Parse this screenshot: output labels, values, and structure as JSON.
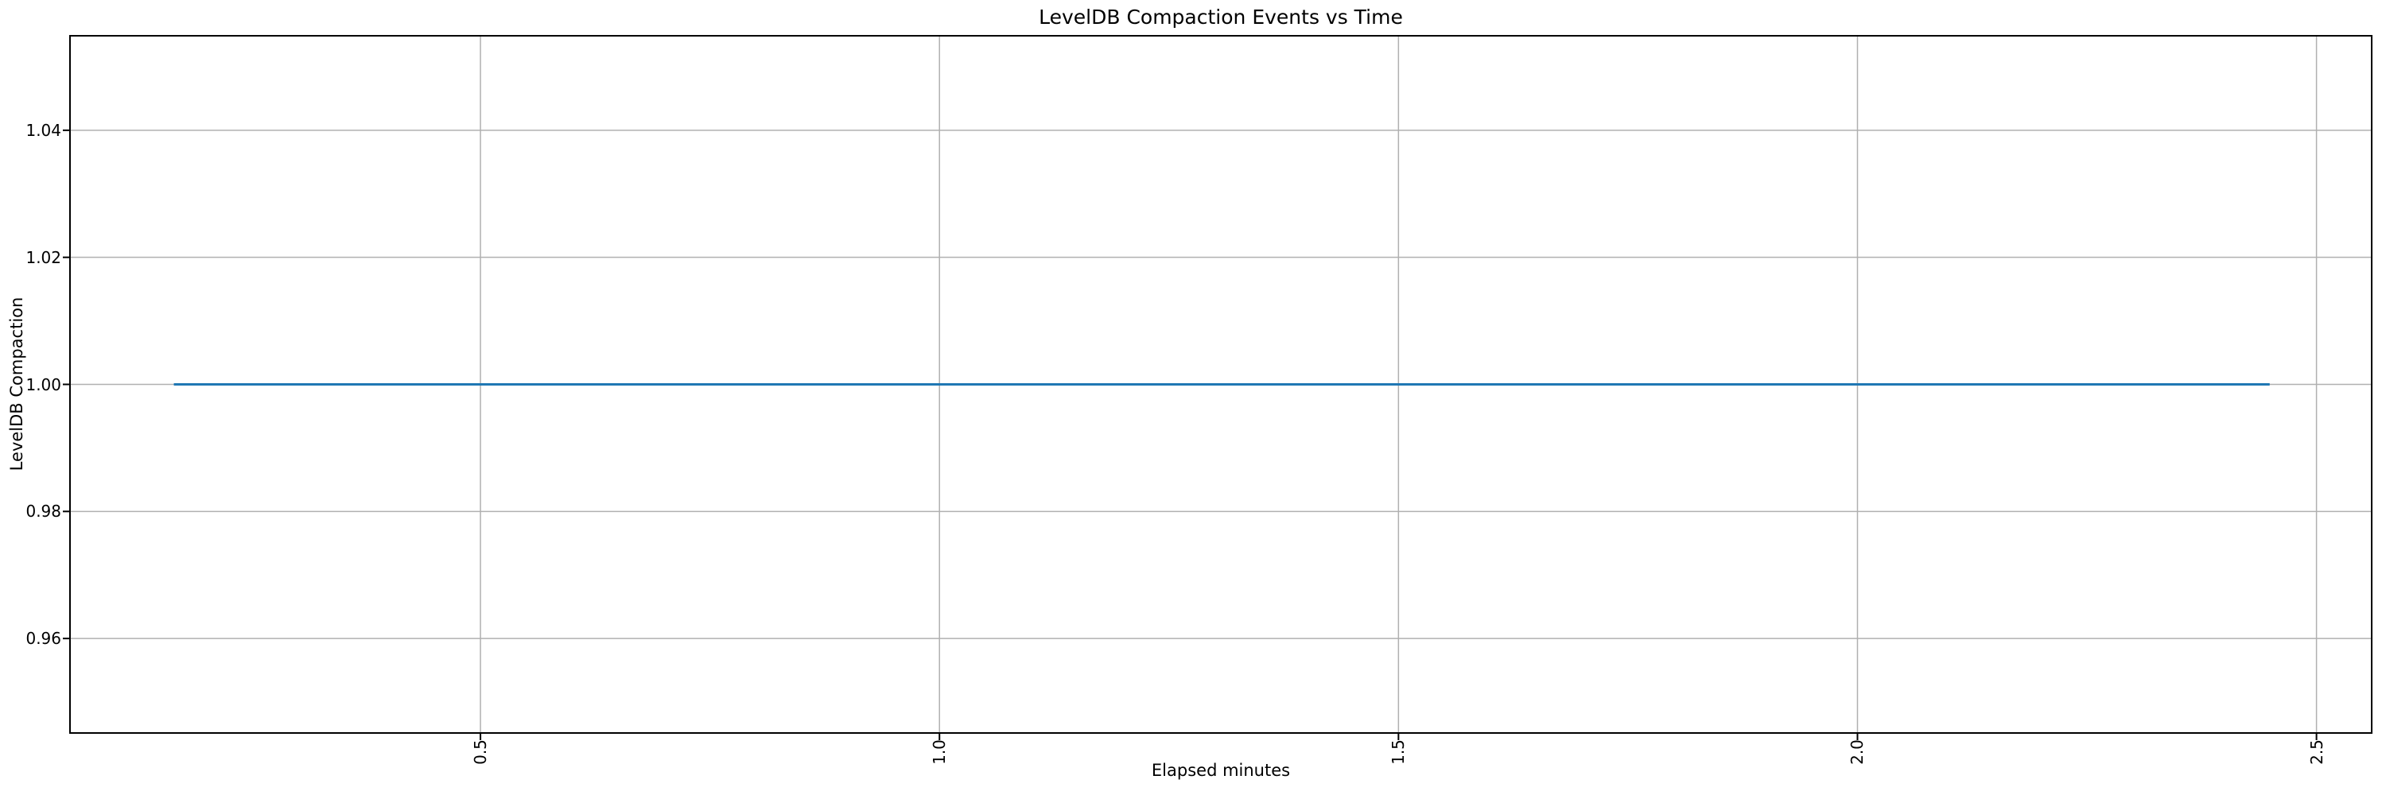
{
  "chart_data": {
    "type": "line",
    "title": "LevelDB Compaction Events vs Time",
    "xlabel": "Elapsed minutes",
    "ylabel": "LevelDB Compaction",
    "x_ticks": [
      0.5,
      1.0,
      1.5,
      2.0,
      2.5
    ],
    "x_tick_labels": [
      "0.5",
      "1.0",
      "1.5",
      "2.0",
      "2.5"
    ],
    "x_tick_rotation_deg": 90,
    "y_ticks": [
      0.96,
      0.98,
      1.0,
      1.02,
      1.04
    ],
    "y_tick_labels": [
      "0.96",
      "0.98",
      "1.00",
      "1.02",
      "1.04"
    ],
    "xlim": [
      0.052,
      2.561
    ],
    "ylim": [
      0.945,
      1.055
    ],
    "grid": true,
    "legend": "none",
    "series": [
      {
        "name": "LevelDB Compaction",
        "color": "#1f77b4",
        "x": [
          0.166,
          2.449
        ],
        "y": [
          1.0,
          1.0
        ]
      }
    ],
    "colors": {
      "line": "#1f77b4",
      "grid": "#b0b0b0",
      "spine": "#000000",
      "text": "#000000",
      "background": "#ffffff"
    }
  }
}
